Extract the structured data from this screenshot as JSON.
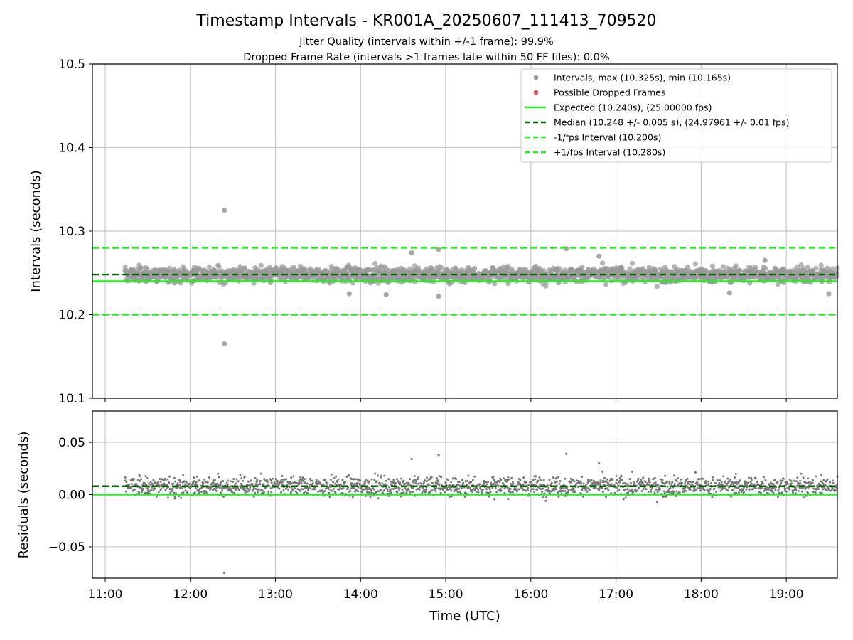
{
  "chart_data": {
    "type": "scatter",
    "title": "Timestamp Intervals - KR001A_20250607_111413_709520",
    "subtitles": [
      "Jitter Quality (intervals within +/-1 frame): 99.9%",
      "Dropped Frame Rate (intervals >1 frames late within 50 FF files): 0.0%"
    ],
    "xlabel": "Time (UTC)",
    "x_ticks": [
      "11:00",
      "12:00",
      "13:00",
      "14:00",
      "15:00",
      "16:00",
      "17:00",
      "18:00",
      "19:00"
    ],
    "x_range": [
      "10:51",
      "19:36"
    ],
    "data_time_range": [
      "11:14",
      "19:36"
    ],
    "grid": true,
    "legend_position": "top-right",
    "top_panel": {
      "ylabel": "Intervals (seconds)",
      "ylim": [
        10.1,
        10.5
      ],
      "y_ticks": [
        "10.1",
        "10.2",
        "10.3",
        "10.4",
        "10.5"
      ],
      "expected": 10.24,
      "median": 10.248,
      "minus_interval": 10.2,
      "plus_interval": 10.28,
      "max": 10.325,
      "min": 10.165,
      "outliers": [
        {
          "x": "12:24",
          "y": 10.325
        },
        {
          "x": "12:24",
          "y": 10.165
        },
        {
          "x": "14:36",
          "y": 10.274
        },
        {
          "x": "14:55",
          "y": 10.278
        },
        {
          "x": "14:55",
          "y": 10.222
        },
        {
          "x": "16:25",
          "y": 10.279
        },
        {
          "x": "16:48",
          "y": 10.27
        },
        {
          "x": "13:52",
          "y": 10.225
        },
        {
          "x": "14:18",
          "y": 10.224
        },
        {
          "x": "18:20",
          "y": 10.226
        },
        {
          "x": "18:45",
          "y": 10.265
        },
        {
          "x": "19:30",
          "y": 10.225
        }
      ]
    },
    "bottom_panel": {
      "ylabel": "Residuals (seconds)",
      "ylim": [
        -0.08,
        0.08
      ],
      "y_ticks": [
        "−0.05",
        "0.00",
        "0.05"
      ],
      "expected": 0.0,
      "median": 0.008,
      "outliers": [
        {
          "x": "12:24",
          "y": -0.075
        },
        {
          "x": "14:36",
          "y": 0.034
        },
        {
          "x": "14:55",
          "y": 0.038
        },
        {
          "x": "16:25",
          "y": 0.039
        },
        {
          "x": "16:48",
          "y": 0.03
        }
      ]
    },
    "legend": [
      {
        "label": "Intervals, max (10.325s), min (10.165s)",
        "kind": "dot",
        "color": "#999999"
      },
      {
        "label": "Possible Dropped Frames",
        "kind": "dot",
        "color": "#ee5555"
      },
      {
        "label": "Expected (10.240s), (25.00000 fps)",
        "kind": "solid",
        "color": "#22ee22"
      },
      {
        "label": "Median (10.248 +/- 0.005 s), (24.97961 +/- 0.01 fps)",
        "kind": "dashed",
        "color": "#006400"
      },
      {
        "label": "-1/fps Interval (10.200s)",
        "kind": "dashed",
        "color": "#22ee22"
      },
      {
        "label": "+1/fps Interval (10.280s)",
        "kind": "dashed",
        "color": "#22ee22"
      }
    ],
    "colors": {
      "points": "#999999",
      "residual_points": "#777777",
      "expected": "#22ee22",
      "median": "#006400",
      "grid": "#c8c8c8"
    }
  }
}
